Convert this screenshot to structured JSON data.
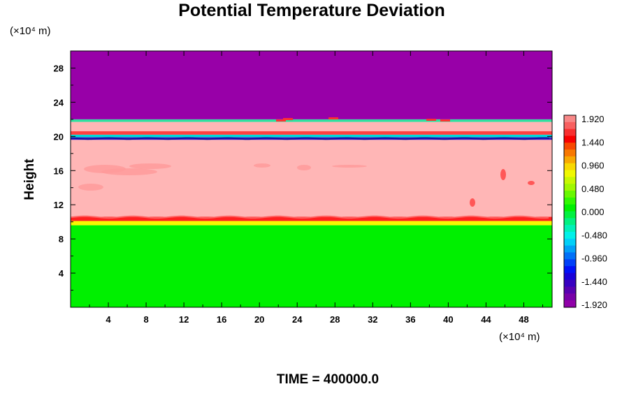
{
  "chart_data": {
    "type": "heatmap",
    "title": "Potential Temperature Deviation",
    "xlabel": "",
    "ylabel": "Height",
    "x_unit_label": "(×10⁴ m)",
    "y_unit_label": "(×10⁴ m)",
    "xlim": [
      0,
      51
    ],
    "ylim": [
      0,
      30
    ],
    "x_ticks": [
      4,
      8,
      12,
      16,
      20,
      24,
      28,
      32,
      36,
      40,
      44,
      48
    ],
    "y_ticks": [
      4,
      8,
      12,
      16,
      20,
      24,
      28
    ],
    "bands": [
      {
        "y_from": 0,
        "y_to": 9.6,
        "value": 0.1,
        "color": "#00f000"
      },
      {
        "y_from": 9.6,
        "y_to": 10.1,
        "value": 1.2,
        "color": "#f8f800"
      },
      {
        "y_from": 10.1,
        "y_to": 10.6,
        "value": 1.8,
        "color": "#ff2020"
      },
      {
        "y_from": 10.6,
        "y_to": 19.6,
        "value": 2.0,
        "color": "#ffb6b6"
      },
      {
        "y_from": 19.6,
        "y_to": 19.9,
        "value": -1.6,
        "color": "#4020c0"
      },
      {
        "y_from": 19.9,
        "y_to": 20.2,
        "value": -0.8,
        "color": "#00d8d8"
      },
      {
        "y_from": 20.2,
        "y_to": 20.6,
        "value": 1.7,
        "color": "#ff4040"
      },
      {
        "y_from": 20.6,
        "y_to": 21.7,
        "value": 2.0,
        "color": "#ffb6b6"
      },
      {
        "y_from": 21.7,
        "y_to": 22.0,
        "value": -0.6,
        "color": "#30e0a0"
      },
      {
        "y_from": 22.0,
        "y_to": 30,
        "value": -2.0,
        "color": "#9800a8"
      }
    ],
    "colorbar": {
      "ticks": [
        "1.920",
        "1.440",
        "0.960",
        "0.480",
        "0.000",
        "-0.480",
        "-0.960",
        "-1.440",
        "-1.920"
      ],
      "colors": [
        "#f88888",
        "#f86060",
        "#f83030",
        "#f80000",
        "#f84800",
        "#f87800",
        "#f8a800",
        "#f8d800",
        "#f0f800",
        "#c8f800",
        "#a0f800",
        "#68f800",
        "#30f800",
        "#00f000",
        "#00f040",
        "#00f080",
        "#00f0b8",
        "#00f0e8",
        "#00d0f8",
        "#00a0f8",
        "#0070f8",
        "#0040f8",
        "#0010f8",
        "#1800d8",
        "#3800c0",
        "#5800b0",
        "#7800a8",
        "#9000a8"
      ]
    },
    "footer": "TIME = 400000.0"
  }
}
